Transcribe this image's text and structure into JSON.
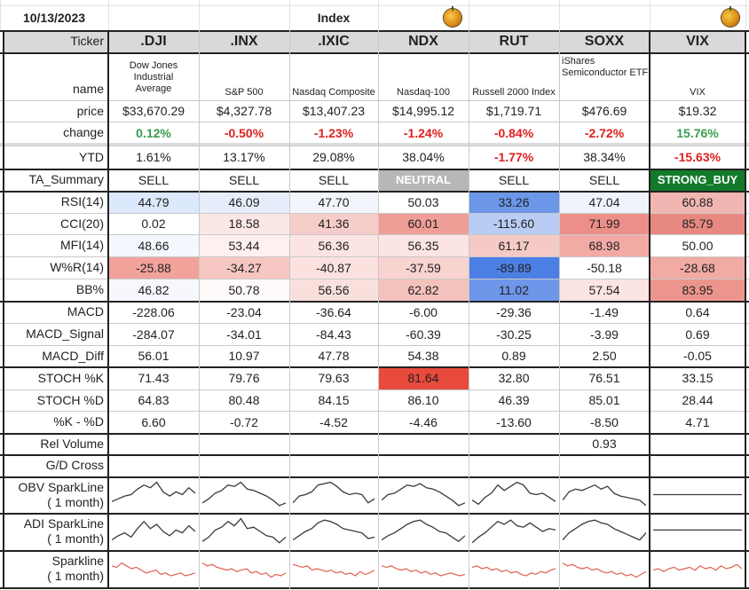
{
  "header": {
    "date": "10/13/2023",
    "title": "Index"
  },
  "tickers": [
    ".DJI",
    ".INX",
    ".IXIC",
    "NDX",
    "RUT",
    "SOXX",
    "VIX"
  ],
  "names": [
    "Dow Jones Industrial Average",
    "S&P 500",
    "Nasdaq Composite",
    "Nasdaq-100",
    "Russell 2000 Index",
    "iShares Semiconductor ETF",
    "VIX"
  ],
  "row_labels": {
    "ticker": "Ticker",
    "name": "name",
    "price": "price",
    "change": "change",
    "ytd": "YTD",
    "ta": "TA_Summary",
    "rsi": "RSI(14)",
    "cci": "CCI(20)",
    "mfi": "MFI(14)",
    "wr": "W%R(14)",
    "bb": "BB%",
    "macd": "MACD",
    "macd_signal": "MACD_Signal",
    "macd_diff": "MACD_Diff",
    "stoch_k": "STOCH %K",
    "stoch_d": "STOCH %D",
    "kd": "%K - %D",
    "relvol": "Rel Volume",
    "gd": "G/D Cross",
    "obv": "OBV SparkLine\n( 1 month)",
    "adi": "ADI SparkLine\n( 1 month)",
    "spark": "Sparkline\n( 1 month)"
  },
  "rows": {
    "price": [
      "$33,670.29",
      "$4,327.78",
      "$13,407.23",
      "$14,995.12",
      "$1,719.71",
      "$476.69",
      "$19.32"
    ],
    "change": [
      "0.12%",
      "-0.50%",
      "-1.23%",
      "-1.24%",
      "-0.84%",
      "-2.72%",
      "15.76%"
    ],
    "ytd": [
      "1.61%",
      "13.17%",
      "29.08%",
      "38.04%",
      "-1.77%",
      "38.34%",
      "-15.63%"
    ],
    "ta": [
      "SELL",
      "SELL",
      "SELL",
      "NEUTRAL",
      "SELL",
      "SELL",
      "STRONG_BUY"
    ],
    "rsi": [
      "44.79",
      "46.09",
      "47.70",
      "50.03",
      "33.26",
      "47.04",
      "60.88"
    ],
    "cci": [
      "0.02",
      "18.58",
      "41.36",
      "60.01",
      "-115.60",
      "71.99",
      "85.79"
    ],
    "mfi": [
      "48.66",
      "53.44",
      "56.36",
      "56.35",
      "61.17",
      "68.98",
      "50.00"
    ],
    "wr": [
      "-25.88",
      "-34.27",
      "-40.87",
      "-37.59",
      "-89.89",
      "-50.18",
      "-28.68"
    ],
    "bb": [
      "46.82",
      "50.78",
      "56.56",
      "62.82",
      "11.02",
      "57.54",
      "83.95"
    ],
    "macd": [
      "-228.06",
      "-23.04",
      "-36.64",
      "-6.00",
      "-29.36",
      "-1.49",
      "0.64"
    ],
    "macd_signal": [
      "-284.07",
      "-34.01",
      "-84.43",
      "-60.39",
      "-30.25",
      "-3.99",
      "0.69"
    ],
    "macd_diff": [
      "56.01",
      "10.97",
      "47.78",
      "54.38",
      "0.89",
      "2.50",
      "-0.05"
    ],
    "stoch_k": [
      "71.43",
      "79.76",
      "79.63",
      "81.64",
      "32.80",
      "76.51",
      "33.15"
    ],
    "stoch_d": [
      "64.83",
      "80.48",
      "84.15",
      "86.10",
      "46.39",
      "85.01",
      "28.44"
    ],
    "kd": [
      "6.60",
      "-0.72",
      "-4.52",
      "-4.46",
      "-13.60",
      "-8.50",
      "4.71"
    ],
    "relvol": [
      "",
      "",
      "",
      "",
      "",
      "0.93",
      ""
    ],
    "gd": [
      "",
      "",
      "",
      "",
      "",
      "",
      ""
    ]
  },
  "colors": {
    "header_bg": "#d9d9d9",
    "positive": "#3a9c4f",
    "negative": "#e01e1e",
    "neutral_badge": "#b7b7b7",
    "strong_buy_badge": "#127a2a",
    "spark_gray": "#3a3a3a",
    "spark_red": "#e06050",
    "stoch_hot": "#e84a3c"
  },
  "cell_fills": {
    "rsi": [
      "#dce8fb",
      "#e6eefb",
      "#f2f5fc",
      "#ffffff",
      "#6c96e8",
      "#eef3fc",
      "#f1b6b1"
    ],
    "cci": [
      "#ffffff",
      "#fbe8e6",
      "#f6cdc9",
      "#ef9e97",
      "#b9cdf4",
      "#ec8f88",
      "#e88981"
    ],
    "mfi": [
      "#f4f7fd",
      "#fdf0ef",
      "#fbe4e2",
      "#fbe4e2",
      "#f5c9c5",
      "#f2aaa4",
      "#ffffff"
    ],
    "wr": [
      "#f0a29b",
      "#f6c7c2",
      "#fbe2df",
      "#f8d3cf",
      "#4c7fe4",
      "#ffffff",
      "#f1aaa4"
    ],
    "bb": [
      "#f6f8fd",
      "#fefafa",
      "#fae0dd",
      "#f4c2bd",
      "#6e97e9",
      "#fbe5e2",
      "#ec958d"
    ],
    "stoch_k": [
      "#ffffff",
      "#ffffff",
      "#ffffff",
      "#e84a3c",
      "#ffffff",
      "#ffffff",
      "#ffffff"
    ]
  },
  "sparklines": {
    "obv": [
      [
        0.25,
        0.35,
        0.45,
        0.5,
        0.7,
        0.85,
        0.75,
        0.95,
        0.6,
        0.45,
        0.6,
        0.5,
        0.75,
        0.55
      ],
      [
        0.2,
        0.35,
        0.55,
        0.65,
        0.85,
        0.8,
        0.95,
        0.7,
        0.65,
        0.55,
        0.45,
        0.3,
        0.1,
        0.2
      ],
      [
        0.2,
        0.45,
        0.5,
        0.6,
        0.85,
        0.9,
        0.95,
        0.8,
        0.6,
        0.5,
        0.55,
        0.5,
        0.2,
        0.35
      ],
      [
        0.3,
        0.5,
        0.55,
        0.7,
        0.85,
        0.8,
        0.9,
        0.75,
        0.7,
        0.6,
        0.45,
        0.3,
        0.1,
        0.2
      ],
      [
        0.3,
        0.15,
        0.4,
        0.55,
        0.85,
        0.65,
        0.8,
        0.95,
        0.85,
        0.55,
        0.5,
        0.55,
        0.4,
        0.25
      ],
      [
        0.3,
        0.6,
        0.7,
        0.65,
        0.75,
        0.85,
        0.7,
        0.8,
        0.55,
        0.45,
        0.4,
        0.35,
        0.3,
        0.1
      ],
      [
        0.5,
        0.5,
        0.5,
        0.5,
        0.5,
        0.5,
        0.5,
        0.5,
        0.5,
        0.5,
        0.5,
        0.5,
        0.5,
        0.5
      ]
    ],
    "adi": [
      [
        0.2,
        0.35,
        0.45,
        0.3,
        0.6,
        0.85,
        0.6,
        0.75,
        0.5,
        0.35,
        0.55,
        0.45,
        0.7,
        0.5
      ],
      [
        0.15,
        0.3,
        0.55,
        0.65,
        0.85,
        0.7,
        0.95,
        0.6,
        0.65,
        0.5,
        0.35,
        0.3,
        0.1,
        0.3
      ],
      [
        0.2,
        0.35,
        0.5,
        0.6,
        0.8,
        0.9,
        0.85,
        0.75,
        0.6,
        0.55,
        0.5,
        0.45,
        0.25,
        0.3
      ],
      [
        0.2,
        0.35,
        0.45,
        0.6,
        0.75,
        0.85,
        0.9,
        0.75,
        0.65,
        0.5,
        0.45,
        0.3,
        0.15,
        0.35
      ],
      [
        0.1,
        0.3,
        0.45,
        0.65,
        0.85,
        0.75,
        0.9,
        0.7,
        0.65,
        0.8,
        0.65,
        0.5,
        0.6,
        0.55
      ],
      [
        0.2,
        0.45,
        0.6,
        0.75,
        0.85,
        0.9,
        0.8,
        0.75,
        0.6,
        0.5,
        0.4,
        0.3,
        0.2,
        0.45
      ],
      [
        0.55,
        0.55,
        0.55,
        0.55,
        0.55,
        0.55,
        0.55,
        0.55,
        0.55,
        0.55,
        0.55,
        0.55,
        0.55,
        0.55
      ]
    ],
    "price": [
      [
        0.6,
        0.55,
        0.7,
        0.6,
        0.5,
        0.55,
        0.45,
        0.35,
        0.4,
        0.45,
        0.3,
        0.35,
        0.25,
        0.3,
        0.35,
        0.25,
        0.3,
        0.35
      ],
      [
        0.7,
        0.6,
        0.65,
        0.55,
        0.5,
        0.45,
        0.5,
        0.4,
        0.45,
        0.5,
        0.35,
        0.4,
        0.3,
        0.35,
        0.2,
        0.3,
        0.25,
        0.35
      ],
      [
        0.65,
        0.6,
        0.55,
        0.6,
        0.45,
        0.5,
        0.45,
        0.4,
        0.45,
        0.35,
        0.4,
        0.3,
        0.35,
        0.25,
        0.4,
        0.3,
        0.35,
        0.45
      ],
      [
        0.6,
        0.55,
        0.6,
        0.5,
        0.45,
        0.5,
        0.4,
        0.45,
        0.35,
        0.4,
        0.3,
        0.35,
        0.25,
        0.3,
        0.35,
        0.3,
        0.25,
        0.3
      ],
      [
        0.55,
        0.6,
        0.5,
        0.55,
        0.45,
        0.5,
        0.4,
        0.45,
        0.35,
        0.4,
        0.3,
        0.25,
        0.35,
        0.3,
        0.4,
        0.35,
        0.45,
        0.5
      ],
      [
        0.7,
        0.6,
        0.65,
        0.55,
        0.5,
        0.55,
        0.45,
        0.5,
        0.4,
        0.35,
        0.4,
        0.3,
        0.35,
        0.25,
        0.3,
        0.2,
        0.3,
        0.4
      ],
      [
        0.45,
        0.5,
        0.4,
        0.5,
        0.55,
        0.45,
        0.5,
        0.55,
        0.45,
        0.6,
        0.5,
        0.55,
        0.45,
        0.6,
        0.5,
        0.55,
        0.65,
        0.5
      ]
    ]
  }
}
